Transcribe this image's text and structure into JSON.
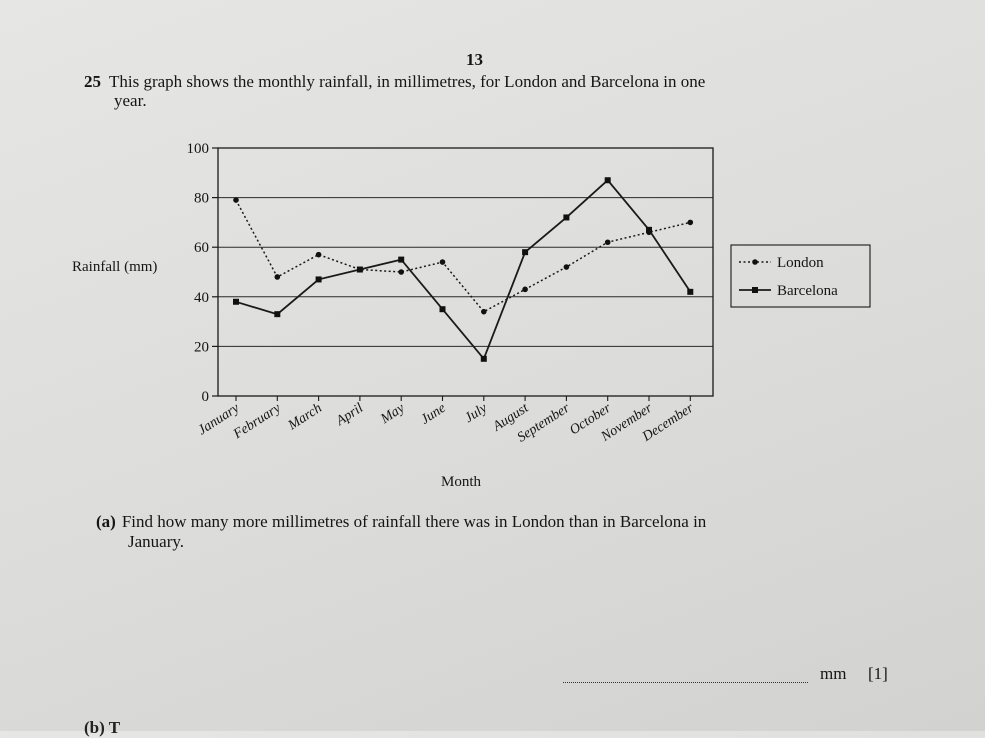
{
  "page_number": "13",
  "question": {
    "number": "25",
    "text_line1": "This graph shows the monthly rainfall, in millimetres, for London and Barcelona in one",
    "text_line2": "year."
  },
  "chart_data": {
    "type": "line",
    "title": "",
    "xlabel": "Month",
    "ylabel": "Rainfall (mm)",
    "ylim": [
      0,
      100
    ],
    "yticks": [
      0,
      20,
      40,
      60,
      80,
      100
    ],
    "grid": true,
    "legend_position": "right",
    "categories": [
      "January",
      "February",
      "March",
      "April",
      "May",
      "June",
      "July",
      "August",
      "September",
      "October",
      "November",
      "December"
    ],
    "series": [
      {
        "name": "London",
        "style": "dotted",
        "marker": "diamond",
        "values": [
          79,
          48,
          57,
          51,
          50,
          54,
          34,
          43,
          52,
          62,
          66,
          70
        ]
      },
      {
        "name": "Barcelona",
        "style": "solid",
        "marker": "square",
        "values": [
          38,
          33,
          47,
          51,
          55,
          35,
          15,
          58,
          72,
          87,
          67,
          42
        ]
      }
    ]
  },
  "part_a": {
    "label": "(a)",
    "text_line1": "Find how many more millimetres of rainfall there was in London than in Barcelona in",
    "text_line2": "January.",
    "unit": "mm",
    "marks": "[1]"
  },
  "cutoff_text": "(b) T"
}
